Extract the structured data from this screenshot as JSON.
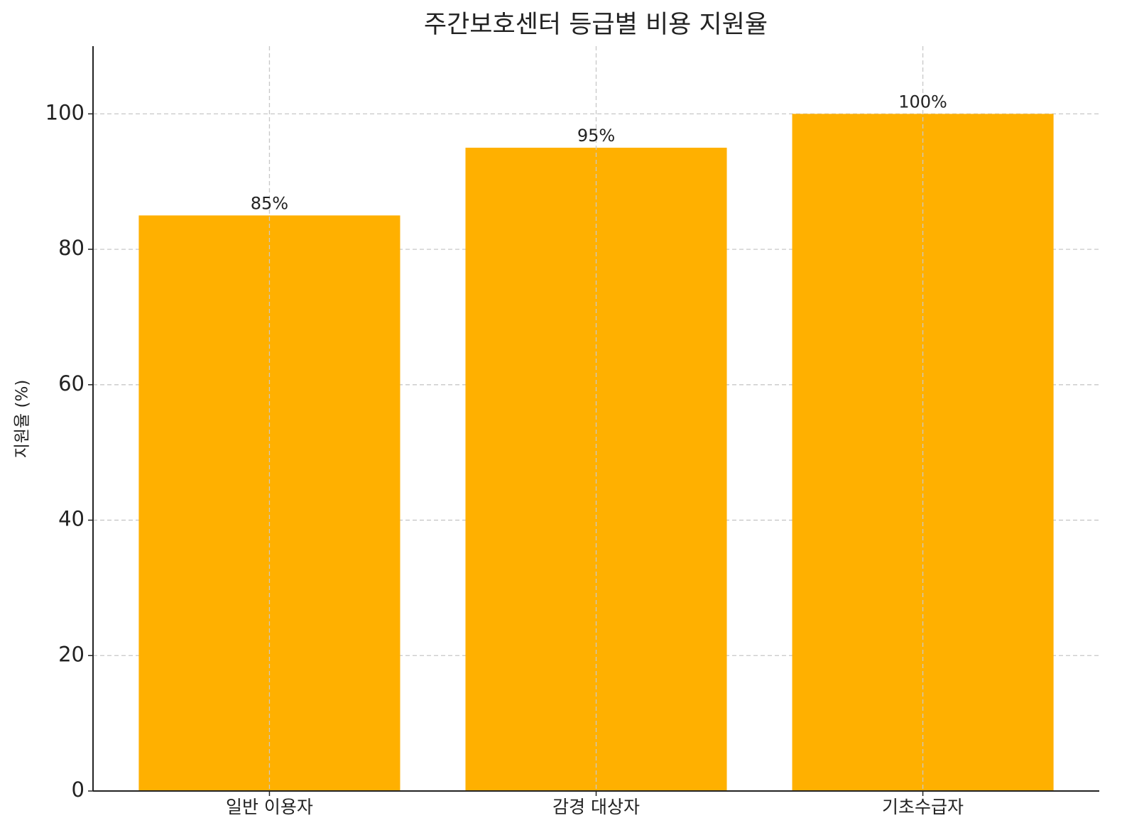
{
  "chart_data": {
    "type": "bar",
    "title": "주간보호센터 등급별 비용 지원율",
    "ylabel": "지원율 (%)",
    "categories": [
      "일반 이용자",
      "감경 대상자",
      "기초수급자"
    ],
    "values": [
      85,
      95,
      100
    ],
    "value_labels": [
      "85%",
      "95%",
      "100%"
    ],
    "color": "#ffb000",
    "ylim": [
      0,
      110
    ],
    "yticks": [
      0,
      20,
      40,
      60,
      80,
      100
    ],
    "grid": true
  }
}
